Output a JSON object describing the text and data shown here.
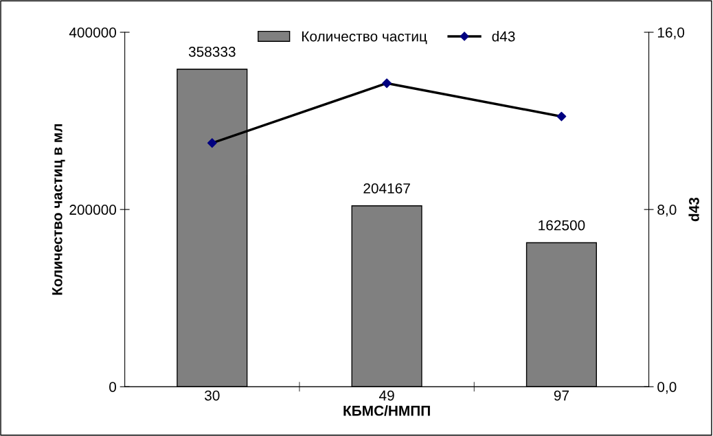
{
  "chart_data": {
    "type": "bar",
    "categories": [
      "30",
      "49",
      "97"
    ],
    "xlabel": "КБМС/НМПП",
    "ylabel": "Количество частиц в мл",
    "y2label": "d43",
    "series": [
      {
        "name": "Количество частиц",
        "color": "#808080",
        "values": [
          358333,
          204167,
          162500
        ],
        "value_labels": [
          "358333",
          "204167",
          "162500"
        ]
      },
      {
        "name": "d43",
        "type": "line",
        "axis": "y2",
        "color": "#000000",
        "colors": [
          "#000080",
          "#000080",
          "#000080"
        ],
        "marker": "diamond",
        "values": [
          11.0,
          13.7,
          12.2
        ]
      }
    ],
    "ylim": [
      0,
      400000
    ],
    "yticks": [
      0,
      200000,
      400000
    ],
    "y2lim": [
      0,
      16
    ],
    "y2ticks": [
      {
        "value": 0,
        "label": "0,0"
      },
      {
        "value": 8,
        "label": "8,0"
      },
      {
        "value": 16,
        "label": "16,0"
      }
    ],
    "legend": "top",
    "grid": false
  }
}
